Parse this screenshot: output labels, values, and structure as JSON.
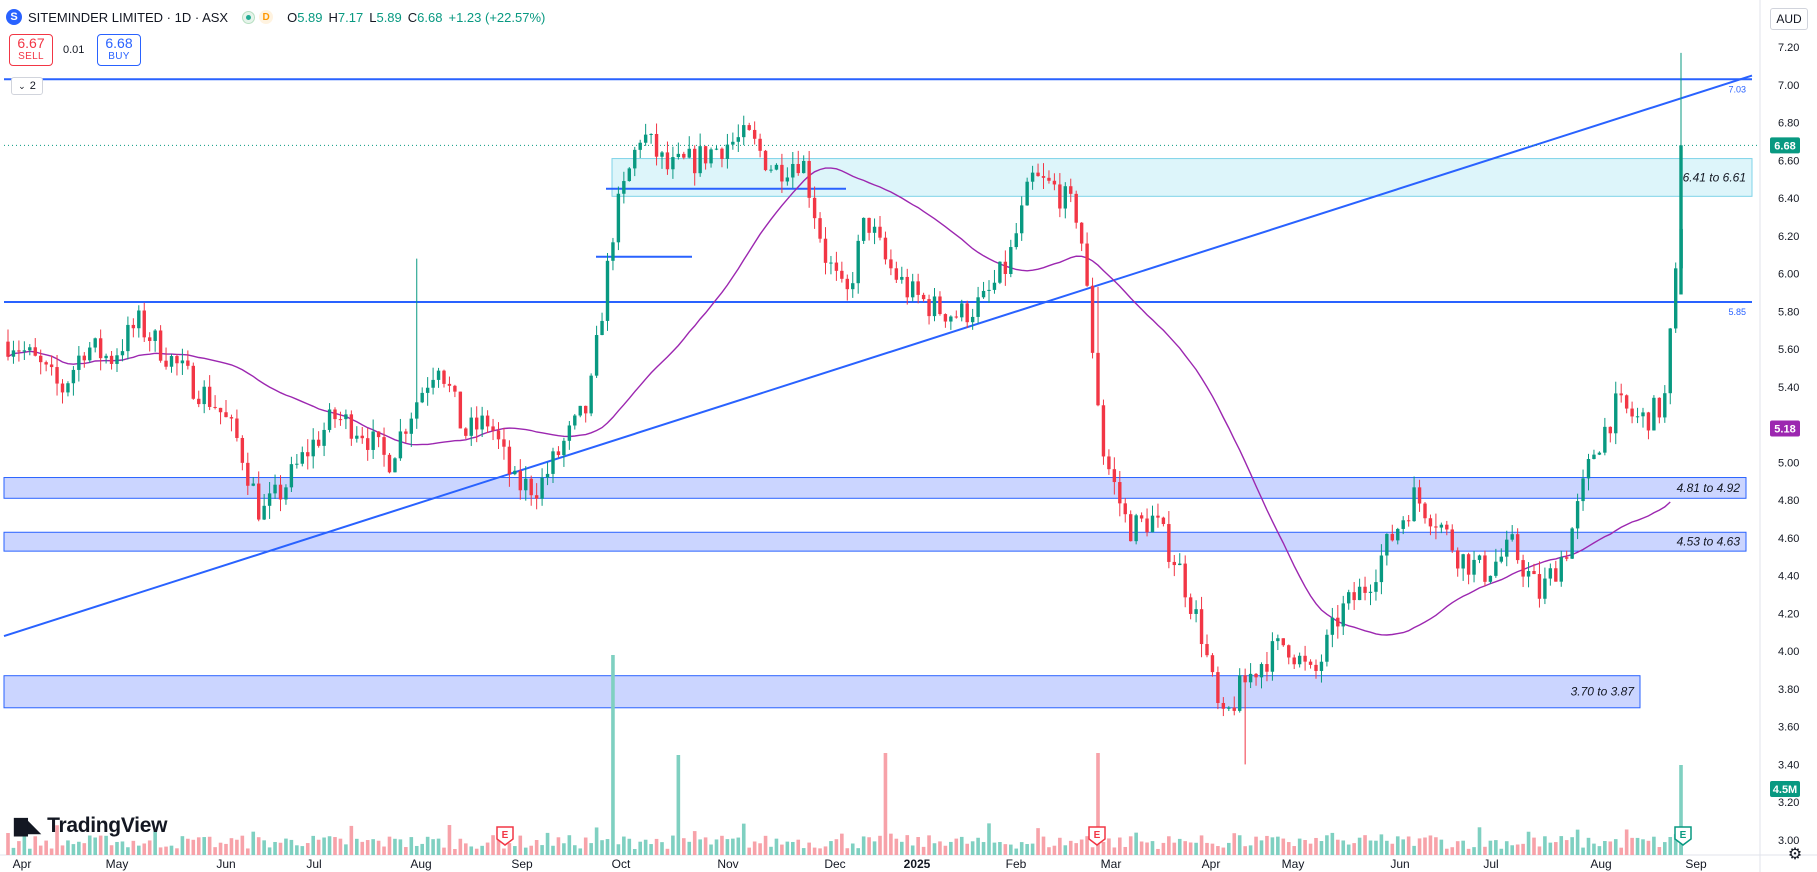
{
  "header": {
    "title": "SITEMINDER LIMITED · 1D · ASX",
    "delay_badge": "D",
    "open_label": "O",
    "open": "5.89",
    "high_label": "H",
    "high": "7.17",
    "low_label": "L",
    "low": "5.89",
    "close_label": "C",
    "close": "6.68",
    "change": "+1.23 (+22.57%)"
  },
  "quote": {
    "sell_price": "6.67",
    "sell_label": "SELL",
    "spread": "0.01",
    "buy_price": "6.68",
    "buy_label": "BUY"
  },
  "indicator_toggle": "2",
  "currency": "AUD",
  "brand": "TradingView",
  "colors": {
    "up": "#089981",
    "down": "#f23645",
    "line": "#2962ff",
    "ma": "#9c27b0",
    "zone_blue": "#b9c7ff",
    "zone_cyan": "#d1f1f8"
  },
  "chart_data": {
    "type": "candlestick",
    "title": "SITEMINDER LIMITED · 1D · ASX",
    "ylim": [
      2.92,
      7.27
    ],
    "y_ticks": [
      "7.20",
      "7.00",
      "6.80",
      "6.60",
      "6.40",
      "6.20",
      "6.00",
      "5.80",
      "5.60",
      "5.40",
      "5.20",
      "5.00",
      "4.80",
      "4.60",
      "4.40",
      "4.20",
      "4.00",
      "3.80",
      "3.60",
      "3.40",
      "3.20",
      "3.00"
    ],
    "x_labels": [
      "Apr",
      "May",
      "Jun",
      "Jul",
      "Aug",
      "Sep",
      "Oct",
      "Nov",
      "Dec",
      "2025",
      "Feb",
      "Mar",
      "Apr",
      "May",
      "Jun",
      "Jul",
      "Aug",
      "Sep"
    ],
    "price_labels": [
      {
        "label": "6.68",
        "value": 6.68,
        "color": "#089981"
      },
      {
        "label": "5.18",
        "value": 5.18,
        "color": "#9c27b0"
      },
      {
        "label": "4.5M",
        "value": 3.27,
        "color": "#089981"
      }
    ],
    "horizontal_lines": [
      {
        "value": 7.03,
        "label": "7.03"
      },
      {
        "value": 5.85,
        "label": "5.85"
      }
    ],
    "zones": [
      {
        "low": 6.41,
        "high": 6.61,
        "label": "6.41 to 6.61",
        "style": "cyan"
      },
      {
        "low": 4.81,
        "high": 4.92,
        "label": "4.81 to 4.92",
        "style": "blue"
      },
      {
        "low": 4.53,
        "high": 4.63,
        "label": "4.53 to 4.63",
        "style": "blue"
      },
      {
        "low": 3.7,
        "high": 3.87,
        "label": "3.70 to 3.87",
        "style": "blue"
      }
    ],
    "trendline": {
      "from": {
        "date": "2024-03-28",
        "price": 4.08
      },
      "to": {
        "date": "2025-08-28",
        "price": 7.05
      }
    },
    "earnings_markers": [
      "Aug",
      "Feb",
      "Aug"
    ],
    "last_close": 6.68,
    "moving_average_last": 5.18,
    "volume_last": "4.5M",
    "anchors": [
      {
        "x": "Apr",
        "price": 5.64
      },
      {
        "x": "Apr",
        "price": 5.52
      },
      {
        "x": "Apr",
        "price": 5.38
      },
      {
        "x": "Apr",
        "price": 5.62
      },
      {
        "x": "May",
        "price": 5.55
      },
      {
        "x": "May",
        "price": 5.74
      },
      {
        "x": "May",
        "price": 5.58
      },
      {
        "x": "May",
        "price": 5.42
      },
      {
        "x": "Jun",
        "price": 5.3
      },
      {
        "x": "Jun",
        "price": 5.1
      },
      {
        "x": "Jun",
        "price": 4.72
      },
      {
        "x": "Jun",
        "price": 4.86
      },
      {
        "x": "Jul",
        "price": 5.06
      },
      {
        "x": "Jul",
        "price": 5.24
      },
      {
        "x": "Jul",
        "price": 5.18
      },
      {
        "x": "Jul",
        "price": 5.0
      },
      {
        "x": "Aug",
        "price": 5.3
      },
      {
        "x": "Aug",
        "price": 5.55
      },
      {
        "x": "Aug",
        "price": 5.15
      },
      {
        "x": "Aug",
        "price": 5.22
      },
      {
        "x": "Sep",
        "price": 4.88
      },
      {
        "x": "Sep",
        "price": 4.87
      },
      {
        "x": "Sep",
        "price": 5.1
      },
      {
        "x": "Sep",
        "price": 5.3
      },
      {
        "x": "Oct",
        "price": 6.28
      },
      {
        "x": "Oct",
        "price": 6.75
      },
      {
        "x": "Oct",
        "price": 6.55
      },
      {
        "x": "Oct",
        "price": 6.6
      },
      {
        "x": "Nov",
        "price": 6.68
      },
      {
        "x": "Nov",
        "price": 6.72
      },
      {
        "x": "Nov",
        "price": 6.55
      },
      {
        "x": "Nov",
        "price": 6.62
      },
      {
        "x": "Dec",
        "price": 6.1
      },
      {
        "x": "Dec",
        "price": 5.85
      },
      {
        "x": "Dec",
        "price": 6.3
      },
      {
        "x": "Dec",
        "price": 6.05
      },
      {
        "x": "2025",
        "price": 5.9
      },
      {
        "x": "2025",
        "price": 5.82
      },
      {
        "x": "2025",
        "price": 5.78
      },
      {
        "x": "2025",
        "price": 5.85
      },
      {
        "x": "Feb",
        "price": 6.05
      },
      {
        "x": "Feb",
        "price": 6.5
      },
      {
        "x": "Feb",
        "price": 6.45
      },
      {
        "x": "Feb",
        "price": 6.3
      },
      {
        "x": "Mar",
        "price": 5.05
      },
      {
        "x": "Mar",
        "price": 4.65
      },
      {
        "x": "Mar",
        "price": 4.7
      },
      {
        "x": "Mar",
        "price": 4.45
      },
      {
        "x": "Apr",
        "price": 4.1
      },
      {
        "x": "Apr",
        "price": 3.6
      },
      {
        "x": "Apr",
        "price": 3.82
      },
      {
        "x": "Apr",
        "price": 3.95
      },
      {
        "x": "May",
        "price": 4.05
      },
      {
        "x": "May",
        "price": 3.85
      },
      {
        "x": "May",
        "price": 4.2
      },
      {
        "x": "May",
        "price": 4.35
      },
      {
        "x": "Jun",
        "price": 4.6
      },
      {
        "x": "Jun",
        "price": 4.82
      },
      {
        "x": "Jun",
        "price": 4.7
      },
      {
        "x": "Jun",
        "price": 4.5
      },
      {
        "x": "Jul",
        "price": 4.42
      },
      {
        "x": "Jul",
        "price": 4.55
      },
      {
        "x": "Jul",
        "price": 4.3
      },
      {
        "x": "Jul",
        "price": 4.55
      },
      {
        "x": "Aug",
        "price": 5.05
      },
      {
        "x": "Aug",
        "price": 5.3
      },
      {
        "x": "Aug",
        "price": 5.22
      },
      {
        "x": "Aug",
        "price": 5.3
      },
      {
        "x": "Sep",
        "price": 6.68
      }
    ]
  }
}
